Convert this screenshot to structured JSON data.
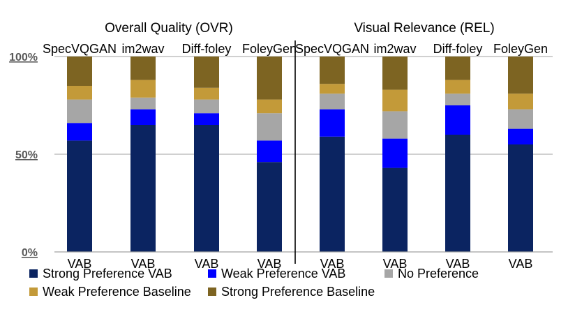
{
  "chart_data": {
    "type": "bar",
    "stacked": true,
    "normalized": true,
    "y_tick_labels": [
      "0%",
      "50%",
      "100%"
    ],
    "y_ticks": [
      0,
      50,
      100
    ],
    "ylim": [
      0,
      100
    ],
    "grid": true,
    "legend_position": "bottom",
    "groups": [
      {
        "title": "Overall Quality (OVR)",
        "methods": [
          "SpecVQGAN",
          "im2wav",
          "Diff-foley",
          "FoleyGen"
        ],
        "categories": [
          "VAB",
          "VAB",
          "VAB",
          "VAB"
        ],
        "series": [
          {
            "name": "Strong Preference VAB",
            "color": "#0b2461",
            "values": [
              57,
              65,
              65,
              46
            ]
          },
          {
            "name": "Weak Preference VAB",
            "color": "#0000ff",
            "values": [
              9,
              8,
              6,
              11
            ]
          },
          {
            "name": "No Preference",
            "color": "#a6a6a6",
            "values": [
              12,
              6,
              7,
              14
            ]
          },
          {
            "name": "Weak Preference Baseline",
            "color": "#c39a39",
            "values": [
              7,
              9,
              6,
              7
            ]
          },
          {
            "name": "Strong Preference Baseline",
            "color": "#7d6422",
            "values": [
              15,
              12,
              16,
              22
            ]
          }
        ]
      },
      {
        "title": "Visual Relevance (REL)",
        "methods": [
          "SpecVQGAN",
          "im2wav",
          "Diff-foley",
          "FoleyGen"
        ],
        "categories": [
          "VAB",
          "VAB",
          "VAB",
          "VAB"
        ],
        "series": [
          {
            "name": "Strong Preference VAB",
            "color": "#0b2461",
            "values": [
              59,
              43,
              60,
              55
            ]
          },
          {
            "name": "Weak Preference VAB",
            "color": "#0000ff",
            "values": [
              14,
              15,
              15,
              8
            ]
          },
          {
            "name": "No Preference",
            "color": "#a6a6a6",
            "values": [
              8,
              14,
              6,
              10
            ]
          },
          {
            "name": "Weak Preference Baseline",
            "color": "#c39a39",
            "values": [
              5,
              11,
              7,
              8
            ]
          },
          {
            "name": "Strong Preference Baseline",
            "color": "#7d6422",
            "values": [
              14,
              17,
              12,
              19
            ]
          }
        ]
      }
    ],
    "legend": [
      {
        "name": "Strong Preference VAB",
        "color": "#0b2461"
      },
      {
        "name": "Weak Preference VAB",
        "color": "#0000ff"
      },
      {
        "name": "No Preference",
        "color": "#a6a6a6"
      },
      {
        "name": "Weak Preference Baseline",
        "color": "#c39a39"
      },
      {
        "name": "Strong Preference Baseline",
        "color": "#7d6422"
      }
    ]
  }
}
